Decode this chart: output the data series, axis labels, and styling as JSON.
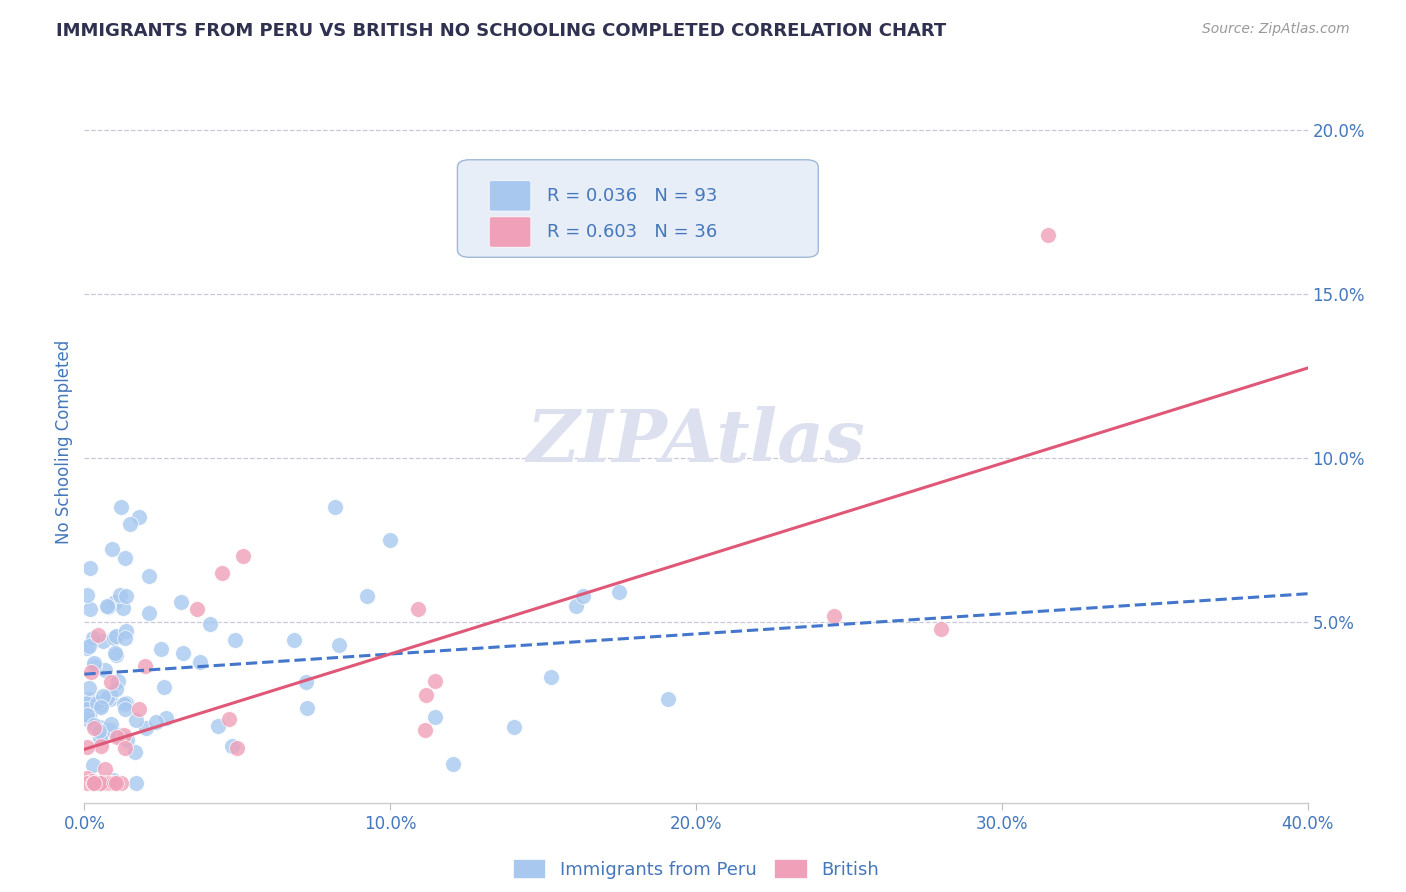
{
  "title": "IMMIGRANTS FROM PERU VS BRITISH NO SCHOOLING COMPLETED CORRELATION CHART",
  "source": "Source: ZipAtlas.com",
  "ylabel": "No Schooling Completed",
  "xlim": [
    0.0,
    0.4
  ],
  "ylim": [
    -0.005,
    0.215
  ],
  "xticks": [
    0.0,
    0.1,
    0.2,
    0.3,
    0.4
  ],
  "xtick_labels": [
    "0.0%",
    "10.0%",
    "20.0%",
    "30.0%",
    "40.0%"
  ],
  "yticks": [
    0.0,
    0.05,
    0.1,
    0.15,
    0.2
  ],
  "ytick_labels": [
    "",
    "5.0%",
    "10.0%",
    "15.0%",
    "20.0%"
  ],
  "series1_label": "Immigrants from Peru",
  "series1_R": "R = 0.036",
  "series1_N": "N = 93",
  "series1_color": "#a8c8f0",
  "series1_trend_color": "#4477cc",
  "series2_label": "British",
  "series2_R": "R = 0.603",
  "series2_N": "N = 36",
  "series2_color": "#f0a0b8",
  "series2_trend_color": "#e05878",
  "background_color": "#ffffff",
  "grid_color": "#c8c8d8",
  "title_color": "#303050",
  "axis_color": "#4477bb",
  "watermark": "ZIPAtlas",
  "watermark_color": "#dde0ee",
  "legend_box_color": "#e8eef8",
  "legend_border_color": "#a0b8d8"
}
